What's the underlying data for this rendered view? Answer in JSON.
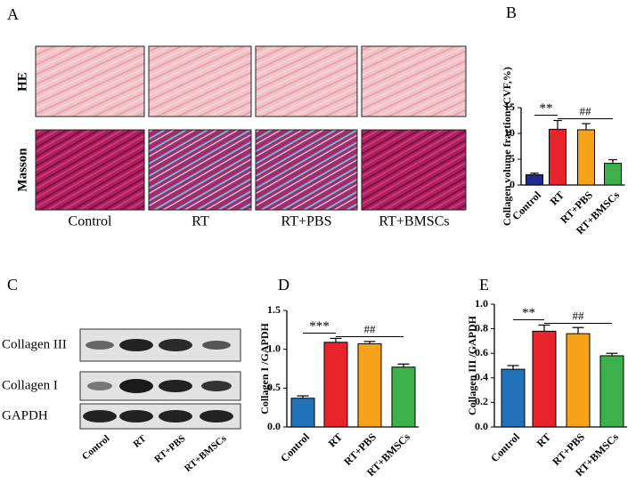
{
  "figure": {
    "panel_labels": [
      "A",
      "B",
      "C",
      "D",
      "E"
    ],
    "rows": [
      "HE",
      "Masson"
    ],
    "columns": [
      "Control",
      "RT",
      "RT+PBS",
      "RT+BMSCs"
    ],
    "blot_labels": [
      "Collagen III",
      "Collagen I",
      "GAPDH"
    ],
    "blot_categories": [
      "Control",
      "RT",
      "RT+PBS",
      "RT+BMSCs"
    ]
  },
  "chart_data": [
    {
      "type": "bar",
      "y_label": "Collagen volume fraction (CVF,%)",
      "categories": [
        "Control",
        "RT",
        "RT+PBS",
        "RT+BMSCs"
      ],
      "values": [
        2.0,
        10.8,
        10.7,
        4.2
      ],
      "errors": [
        0.3,
        1.7,
        1.2,
        0.7
      ],
      "colors": [
        "#1f2a8c",
        "#e8232b",
        "#f7a21b",
        "#3cb04a"
      ],
      "ylim": [
        0,
        15
      ],
      "yticks": [
        0,
        5,
        10,
        15
      ],
      "annotations": [
        "**",
        "##"
      ]
    },
    {
      "type": "bar",
      "y_label": "Collagen I /GAPDH",
      "categories": [
        "Control",
        "RT",
        "RT+PBS",
        "RT+BMSCs"
      ],
      "values": [
        0.37,
        1.09,
        1.07,
        0.77
      ],
      "errors": [
        0.03,
        0.05,
        0.03,
        0.04
      ],
      "colors": [
        "#2272b9",
        "#e8232b",
        "#f7a21b",
        "#3cb04a"
      ],
      "ylim": [
        0,
        1.5
      ],
      "yticks": [
        {
          "value": 0,
          "label": "0.0"
        },
        {
          "value": 0.5,
          "label": "0.5"
        },
        {
          "value": 1,
          "label": "1.0"
        },
        {
          "value": 1.5,
          "label": "1.5"
        }
      ],
      "annotations": [
        "***",
        "##"
      ]
    },
    {
      "type": "bar",
      "y_label": "Collagen III /GAPDH",
      "categories": [
        "Control",
        "RT",
        "RT+PBS",
        "RT+BMSCs"
      ],
      "values": [
        0.47,
        0.78,
        0.76,
        0.58
      ],
      "errors": [
        0.03,
        0.05,
        0.05,
        0.02
      ],
      "colors": [
        "#2272b9",
        "#e8232b",
        "#f7a21b",
        "#3cb04a"
      ],
      "ylim": [
        0,
        1
      ],
      "yticks": [
        {
          "value": 0,
          "label": "0.0"
        },
        {
          "value": 0.2,
          "label": "0.2"
        },
        {
          "value": 0.4,
          "label": "0.4"
        },
        {
          "value": 0.6,
          "label": "0.6"
        },
        {
          "value": 0.8,
          "label": "0.8"
        },
        {
          "value": 1,
          "label": "1.0"
        }
      ],
      "annotations": [
        "**",
        "##"
      ]
    }
  ]
}
